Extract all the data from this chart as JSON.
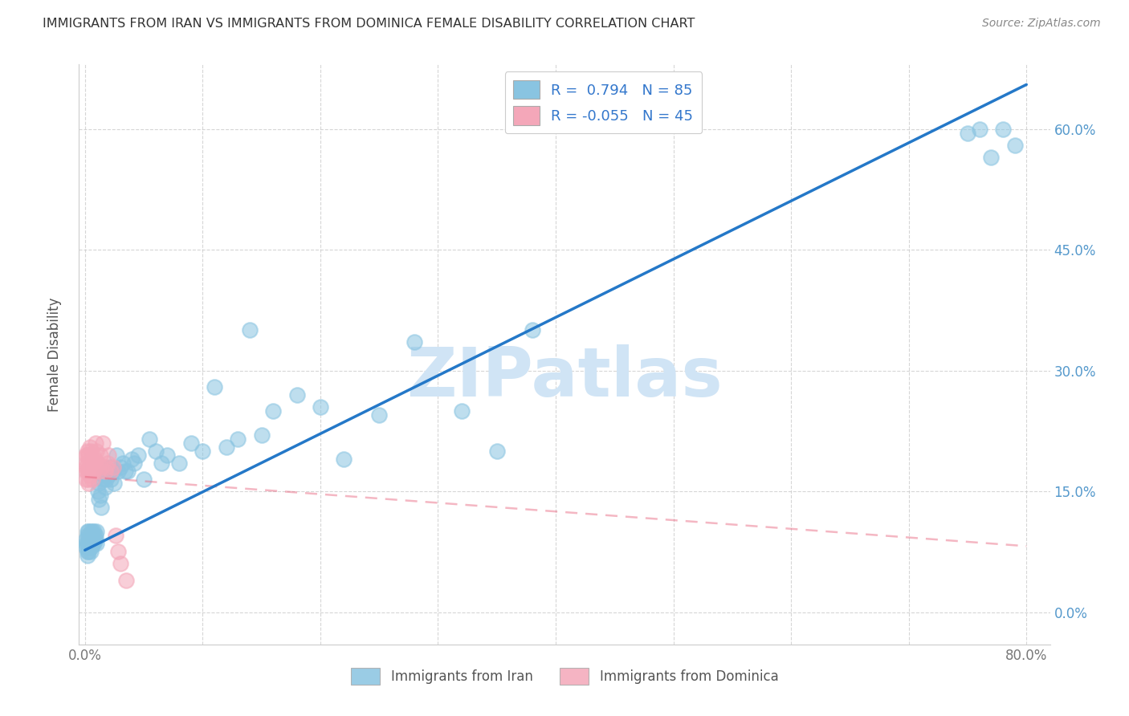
{
  "title": "IMMIGRANTS FROM IRAN VS IMMIGRANTS FROM DOMINICA FEMALE DISABILITY CORRELATION CHART",
  "source": "Source: ZipAtlas.com",
  "ylabel": "Female Disability",
  "xlim": [
    -0.005,
    0.82
  ],
  "ylim": [
    -0.04,
    0.68
  ],
  "xticks": [
    0.0,
    0.1,
    0.2,
    0.3,
    0.4,
    0.5,
    0.6,
    0.7,
    0.8
  ],
  "xticklabels": [
    "0.0%",
    "",
    "",
    "",
    "",
    "",
    "",
    "",
    "80.0%"
  ],
  "yticks_right": [
    0.0,
    0.15,
    0.3,
    0.45,
    0.6
  ],
  "ytick_right_labels": [
    "0.0%",
    "15.0%",
    "30.0%",
    "45.0%",
    "60.0%"
  ],
  "iran_R": 0.794,
  "iran_N": 85,
  "dominica_R": -0.055,
  "dominica_N": 45,
  "iran_color": "#89c4e1",
  "dominica_color": "#f4a7b9",
  "iran_line_color": "#2478c8",
  "dominica_line_color": "#e8607a",
  "background_color": "#ffffff",
  "watermark": "ZIPatlas",
  "watermark_color": "#d0e4f5",
  "iran_line_x0": 0.0,
  "iran_line_y0": 0.077,
  "iran_line_x1": 0.8,
  "iran_line_y1": 0.655,
  "dominica_line_x0": 0.0,
  "dominica_line_y0": 0.168,
  "dominica_line_x1": 0.8,
  "dominica_line_y1": 0.082,
  "iran_x": [
    0.001,
    0.001,
    0.001,
    0.002,
    0.002,
    0.002,
    0.002,
    0.002,
    0.003,
    0.003,
    0.003,
    0.003,
    0.003,
    0.004,
    0.004,
    0.004,
    0.004,
    0.005,
    0.005,
    0.005,
    0.005,
    0.005,
    0.006,
    0.006,
    0.006,
    0.007,
    0.007,
    0.007,
    0.008,
    0.008,
    0.009,
    0.009,
    0.01,
    0.01,
    0.011,
    0.012,
    0.012,
    0.013,
    0.014,
    0.015,
    0.016,
    0.017,
    0.018,
    0.019,
    0.02,
    0.021,
    0.022,
    0.024,
    0.025,
    0.027,
    0.028,
    0.03,
    0.032,
    0.034,
    0.036,
    0.04,
    0.042,
    0.045,
    0.05,
    0.055,
    0.06,
    0.065,
    0.07,
    0.08,
    0.09,
    0.1,
    0.11,
    0.12,
    0.13,
    0.14,
    0.15,
    0.16,
    0.18,
    0.2,
    0.22,
    0.25,
    0.28,
    0.32,
    0.35,
    0.38,
    0.75,
    0.76,
    0.77,
    0.78,
    0.79
  ],
  "iran_y": [
    0.085,
    0.09,
    0.08,
    0.095,
    0.1,
    0.075,
    0.085,
    0.07,
    0.09,
    0.1,
    0.085,
    0.08,
    0.075,
    0.095,
    0.09,
    0.085,
    0.08,
    0.1,
    0.09,
    0.085,
    0.08,
    0.075,
    0.095,
    0.1,
    0.085,
    0.095,
    0.09,
    0.085,
    0.1,
    0.085,
    0.095,
    0.09,
    0.1,
    0.085,
    0.15,
    0.16,
    0.14,
    0.145,
    0.13,
    0.165,
    0.17,
    0.155,
    0.165,
    0.175,
    0.17,
    0.18,
    0.165,
    0.175,
    0.16,
    0.195,
    0.175,
    0.18,
    0.185,
    0.175,
    0.175,
    0.19,
    0.185,
    0.195,
    0.165,
    0.215,
    0.2,
    0.185,
    0.195,
    0.185,
    0.21,
    0.2,
    0.28,
    0.205,
    0.215,
    0.35,
    0.22,
    0.25,
    0.27,
    0.255,
    0.19,
    0.245,
    0.335,
    0.25,
    0.2,
    0.35,
    0.595,
    0.6,
    0.565,
    0.6,
    0.58
  ],
  "dominica_x": [
    0.001,
    0.001,
    0.001,
    0.001,
    0.001,
    0.002,
    0.002,
    0.002,
    0.002,
    0.003,
    0.003,
    0.003,
    0.003,
    0.003,
    0.004,
    0.004,
    0.004,
    0.005,
    0.005,
    0.005,
    0.005,
    0.006,
    0.006,
    0.007,
    0.007,
    0.008,
    0.008,
    0.009,
    0.01,
    0.01,
    0.011,
    0.012,
    0.013,
    0.014,
    0.015,
    0.017,
    0.018,
    0.019,
    0.02,
    0.022,
    0.024,
    0.026,
    0.028,
    0.03,
    0.035
  ],
  "dominica_y": [
    0.165,
    0.175,
    0.195,
    0.18,
    0.185,
    0.2,
    0.175,
    0.195,
    0.185,
    0.165,
    0.175,
    0.18,
    0.195,
    0.16,
    0.205,
    0.175,
    0.17,
    0.185,
    0.19,
    0.175,
    0.2,
    0.165,
    0.18,
    0.195,
    0.175,
    0.19,
    0.175,
    0.21,
    0.18,
    0.2,
    0.185,
    0.175,
    0.195,
    0.18,
    0.21,
    0.175,
    0.18,
    0.185,
    0.195,
    0.175,
    0.18,
    0.095,
    0.075,
    0.06,
    0.04
  ]
}
